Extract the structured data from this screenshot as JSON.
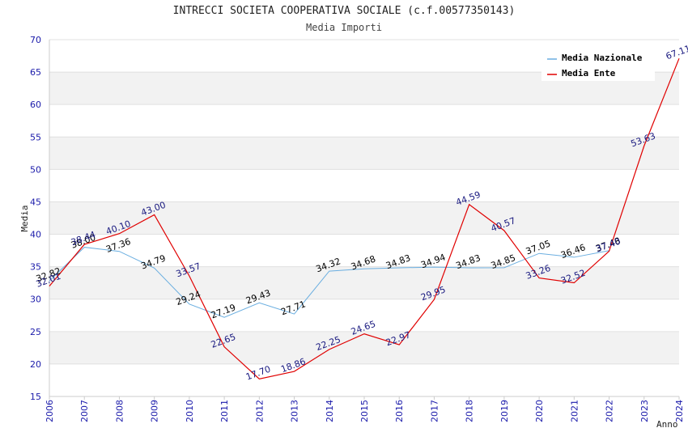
{
  "chart_data": {
    "type": "line",
    "title": "INTRECCI SOCIETA COOPERATIVA SOCIALE (c.f.00577350143)",
    "subtitle": "Media Importi",
    "xlabel": "Anno",
    "ylabel": "Media",
    "ylim": [
      15,
      70
    ],
    "yticks": [
      15,
      20,
      25,
      30,
      35,
      40,
      45,
      50,
      55,
      60,
      65,
      70
    ],
    "x": [
      "2006",
      "2007",
      "2008",
      "2009",
      "2010",
      "2011",
      "2012",
      "2013",
      "2014",
      "2015",
      "2016",
      "2017",
      "2018",
      "2019",
      "2020",
      "2021",
      "2022",
      "2023",
      "2024"
    ],
    "grid": true,
    "legend_position": "top-right",
    "series": [
      {
        "name": "Media Nazionale",
        "color": "#6aaee0",
        "values": [
          32.82,
          38.0,
          37.36,
          34.79,
          29.24,
          27.19,
          29.43,
          27.71,
          34.32,
          34.68,
          34.83,
          34.94,
          34.83,
          34.85,
          37.05,
          36.46,
          37.48,
          null,
          null
        ],
        "labels": [
          "32.82",
          "38.00",
          "37.36",
          "34.79",
          "29.24",
          "27.19",
          "29.43",
          "27.71",
          "34.32",
          "34.68",
          "34.83",
          "34.94",
          "34.83",
          "34.85",
          "37.05",
          "36.46",
          "37.48",
          null,
          null
        ]
      },
      {
        "name": "Media Ente",
        "color": "#e00000",
        "values": [
          32.01,
          38.44,
          40.1,
          43.0,
          33.57,
          22.65,
          17.7,
          18.86,
          22.25,
          24.65,
          22.97,
          29.95,
          44.59,
          40.57,
          33.26,
          32.52,
          37.4,
          53.63,
          67.11
        ],
        "labels": [
          "32.01",
          "38.44",
          "40.10",
          "43.00",
          "33.57",
          "22.65",
          "17.70",
          "18.86",
          "22.25",
          "24.65",
          "22.97",
          "29.95",
          "44.59",
          "40.57",
          "33.26",
          "32.52",
          "37.40",
          "53.63",
          "67.11"
        ]
      }
    ]
  }
}
